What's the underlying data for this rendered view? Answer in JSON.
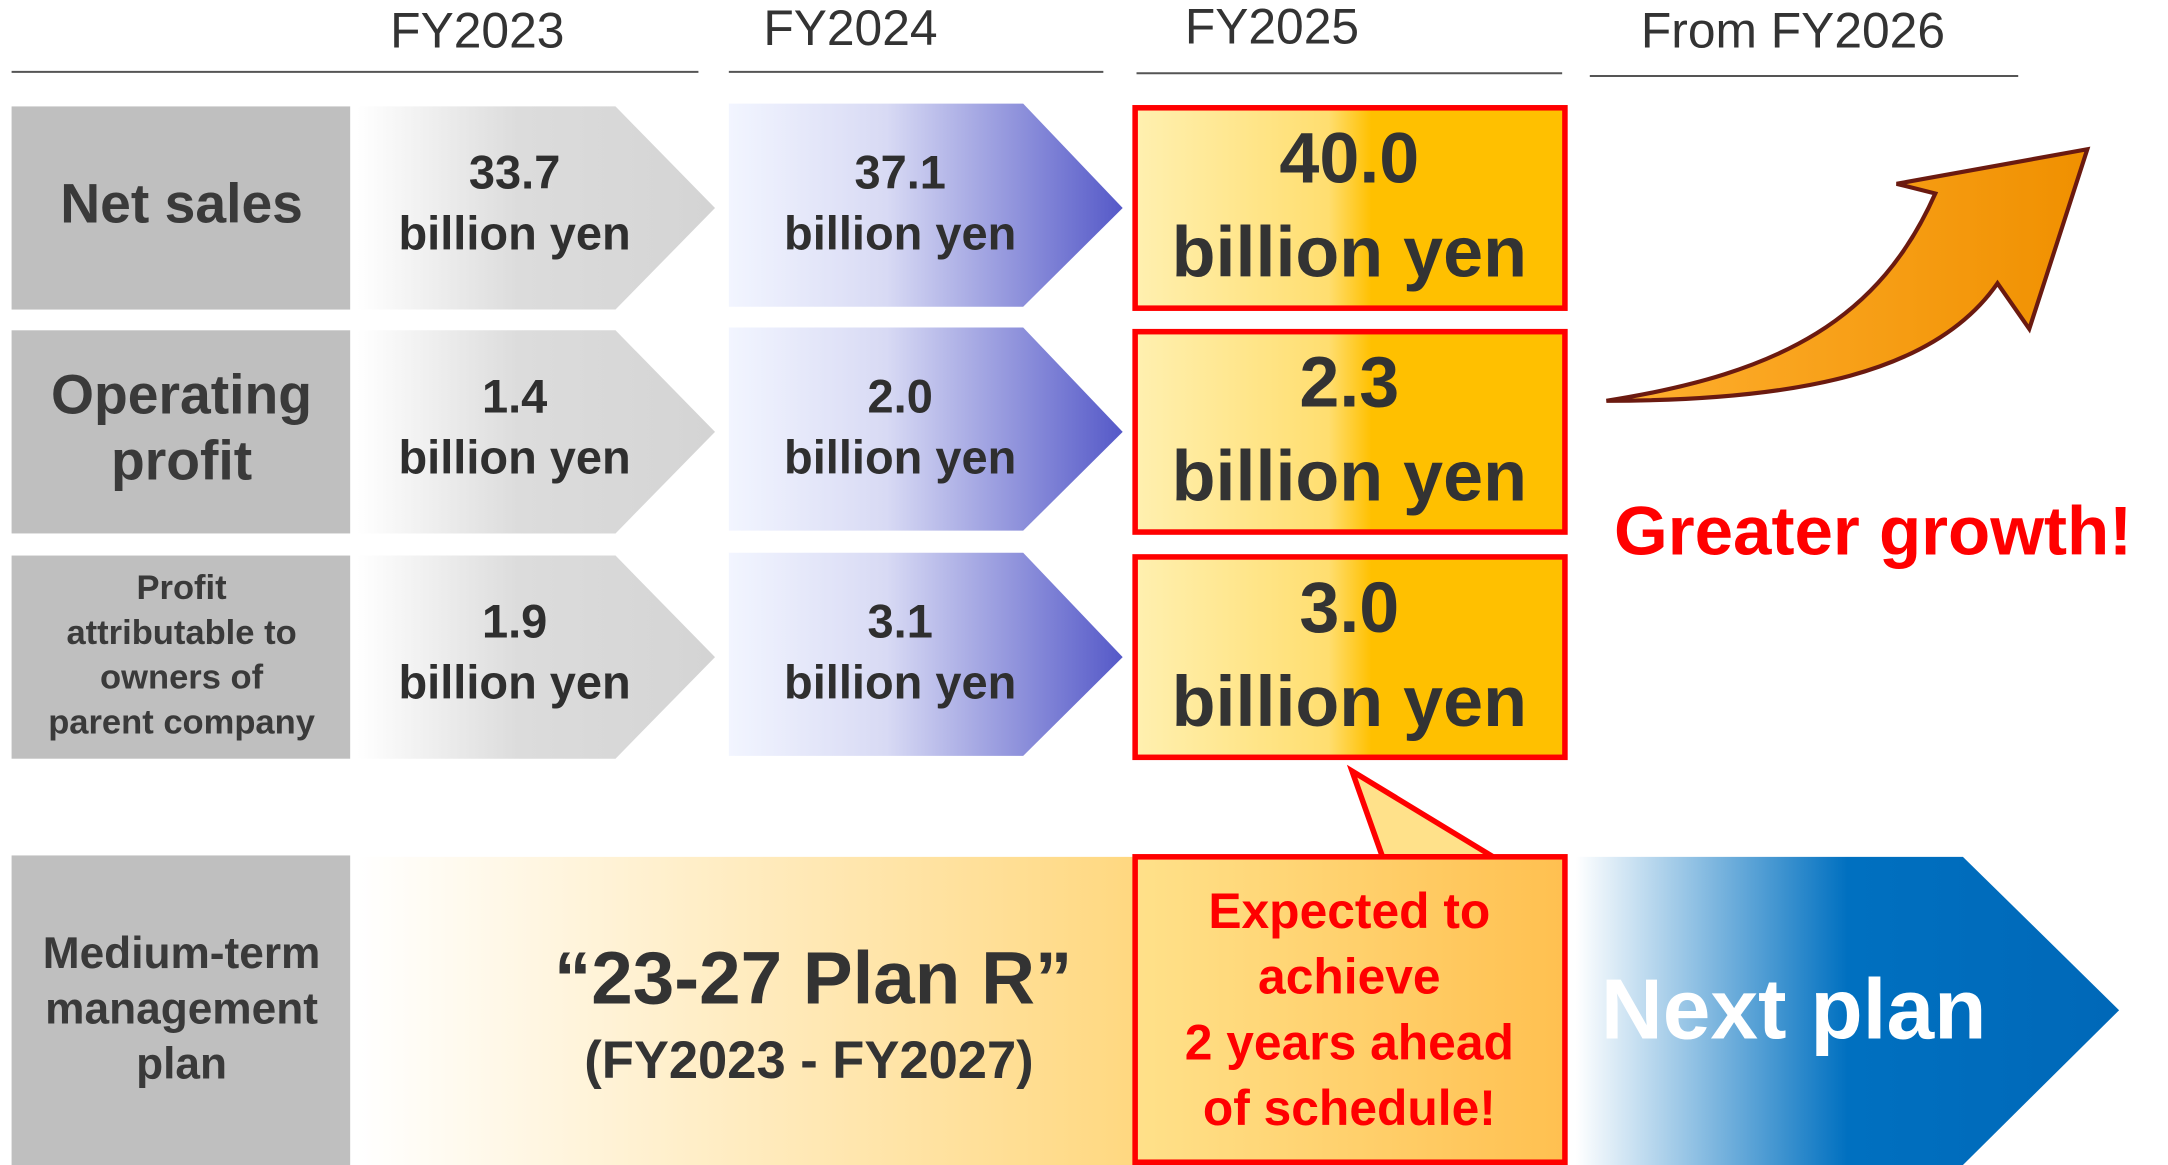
{
  "headers": [
    "FY2023",
    "FY2024",
    "FY2025",
    "From FY2026"
  ],
  "rows": [
    {
      "label": [
        "Net sales"
      ],
      "cells": [
        {
          "value": "33.7",
          "unit": "billion yen"
        },
        {
          "value": "37.1",
          "unit": "billion yen"
        },
        {
          "value": "40.0",
          "unit": "billion yen"
        }
      ]
    },
    {
      "label": [
        "Operating",
        "profit"
      ],
      "cells": [
        {
          "value": "1.4",
          "unit": "billion yen"
        },
        {
          "value": "2.0",
          "unit": "billion yen"
        },
        {
          "value": "2.3",
          "unit": "billion yen"
        }
      ]
    },
    {
      "label": [
        "Profit",
        "attributable to",
        "owners of",
        "parent company"
      ],
      "cells": [
        {
          "value": "1.9",
          "unit": "billion yen"
        },
        {
          "value": "3.1",
          "unit": "billion yen"
        },
        {
          "value": "3.0",
          "unit": "billion yen"
        }
      ]
    }
  ],
  "growth": "Greater growth!",
  "plan": {
    "label": [
      "Medium-term",
      "management",
      "plan"
    ],
    "name": "“23-27 Plan R”",
    "period": "(FY2023 - FY2027)",
    "callout": [
      "Expected to",
      "achieve",
      "2 years ahead",
      "of schedule!"
    ],
    "next": "Next plan"
  }
}
